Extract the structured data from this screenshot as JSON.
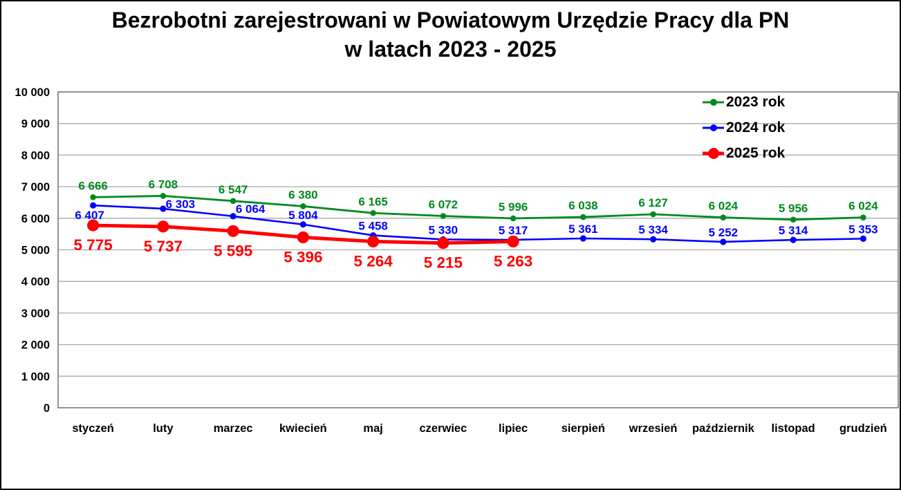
{
  "title": {
    "line1": "Bezrobotni zarejestrowani w Powiatowym Urzędzie Pracy dla PN",
    "line2": "w latach 2023 - 2025"
  },
  "chart_data": {
    "type": "line",
    "title": "Bezrobotni zarejestrowani w Powiatowym Urzędzie Pracy dla PN w latach 2023 - 2025",
    "categories": [
      "styczeń",
      "luty",
      "marzec",
      "kwiecień",
      "maj",
      "czerwiec",
      "lipiec",
      "sierpień",
      "wrzesień",
      "październik",
      "listopad",
      "grudzień"
    ],
    "xlabel": "",
    "ylabel": "",
    "ylim": [
      0,
      10000
    ],
    "ytick_step": 1000,
    "ytick_labels": [
      "0",
      "1 000",
      "2 000",
      "3 000",
      "4 000",
      "5 000",
      "6 000",
      "7 000",
      "8 000",
      "9 000",
      "10 000"
    ],
    "grid": "horizontal",
    "legend_position": "top-right-inside",
    "colors": {
      "grid": "#A8A8A8",
      "plot_border": "#6E6E6E",
      "axis_text": "#000000",
      "background": "#FFFFFF"
    },
    "series": [
      {
        "name": "2023 rok",
        "color": "#008A1E",
        "label_position": "above",
        "values": [
          6666,
          6708,
          6547,
          6380,
          6165,
          6072,
          5996,
          6038,
          6127,
          6024,
          5956,
          6024
        ]
      },
      {
        "name": "2024 rok",
        "color": "#0000FF",
        "label_position": "above",
        "values": [
          6407,
          6303,
          6064,
          5804,
          5458,
          5330,
          5317,
          5361,
          5334,
          5252,
          5314,
          5353
        ]
      },
      {
        "name": "2025 rok",
        "color": "#FF0000",
        "label_position": "below",
        "emphasis": true,
        "values": [
          5775,
          5737,
          5595,
          5396,
          5264,
          5215,
          5263
        ]
      }
    ]
  }
}
